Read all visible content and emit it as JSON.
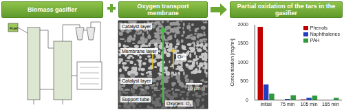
{
  "header": {
    "boxes": [
      "Biomass gasifier",
      "Oxygen transport membrane",
      "Partial oxidation of the tars in the gasifier"
    ]
  },
  "gasifier_diagram": {
    "labels": [
      "Fuel"
    ]
  },
  "micrograph": {
    "layers": [
      "Catalyst layer",
      "Membrane layer",
      "Catalyst layer",
      "Support tube"
    ],
    "ion": "O²⁻",
    "gas": "Oxygen: O₂",
    "scale_bar": "10 μm"
  },
  "chart_data": {
    "type": "bar",
    "categories": [
      "Initial",
      "75 min",
      "105 min",
      "165 min"
    ],
    "series": [
      {
        "name": "Phenols",
        "color": "#c00000",
        "values": [
          1950,
          10,
          20,
          5
        ]
      },
      {
        "name": "Naphthalenes",
        "color": "#1f3fbf",
        "values": [
          420,
          30,
          60,
          10
        ]
      },
      {
        "name": "PAH",
        "color": "#2e9a3a",
        "values": [
          170,
          130,
          120,
          60
        ]
      }
    ],
    "y_label": "Concentration [mg/m³]",
    "ylim": [
      0,
      2000
    ],
    "yticks": [
      0,
      500,
      1000,
      1500,
      2000
    ],
    "grid": false,
    "legend": "top right"
  }
}
